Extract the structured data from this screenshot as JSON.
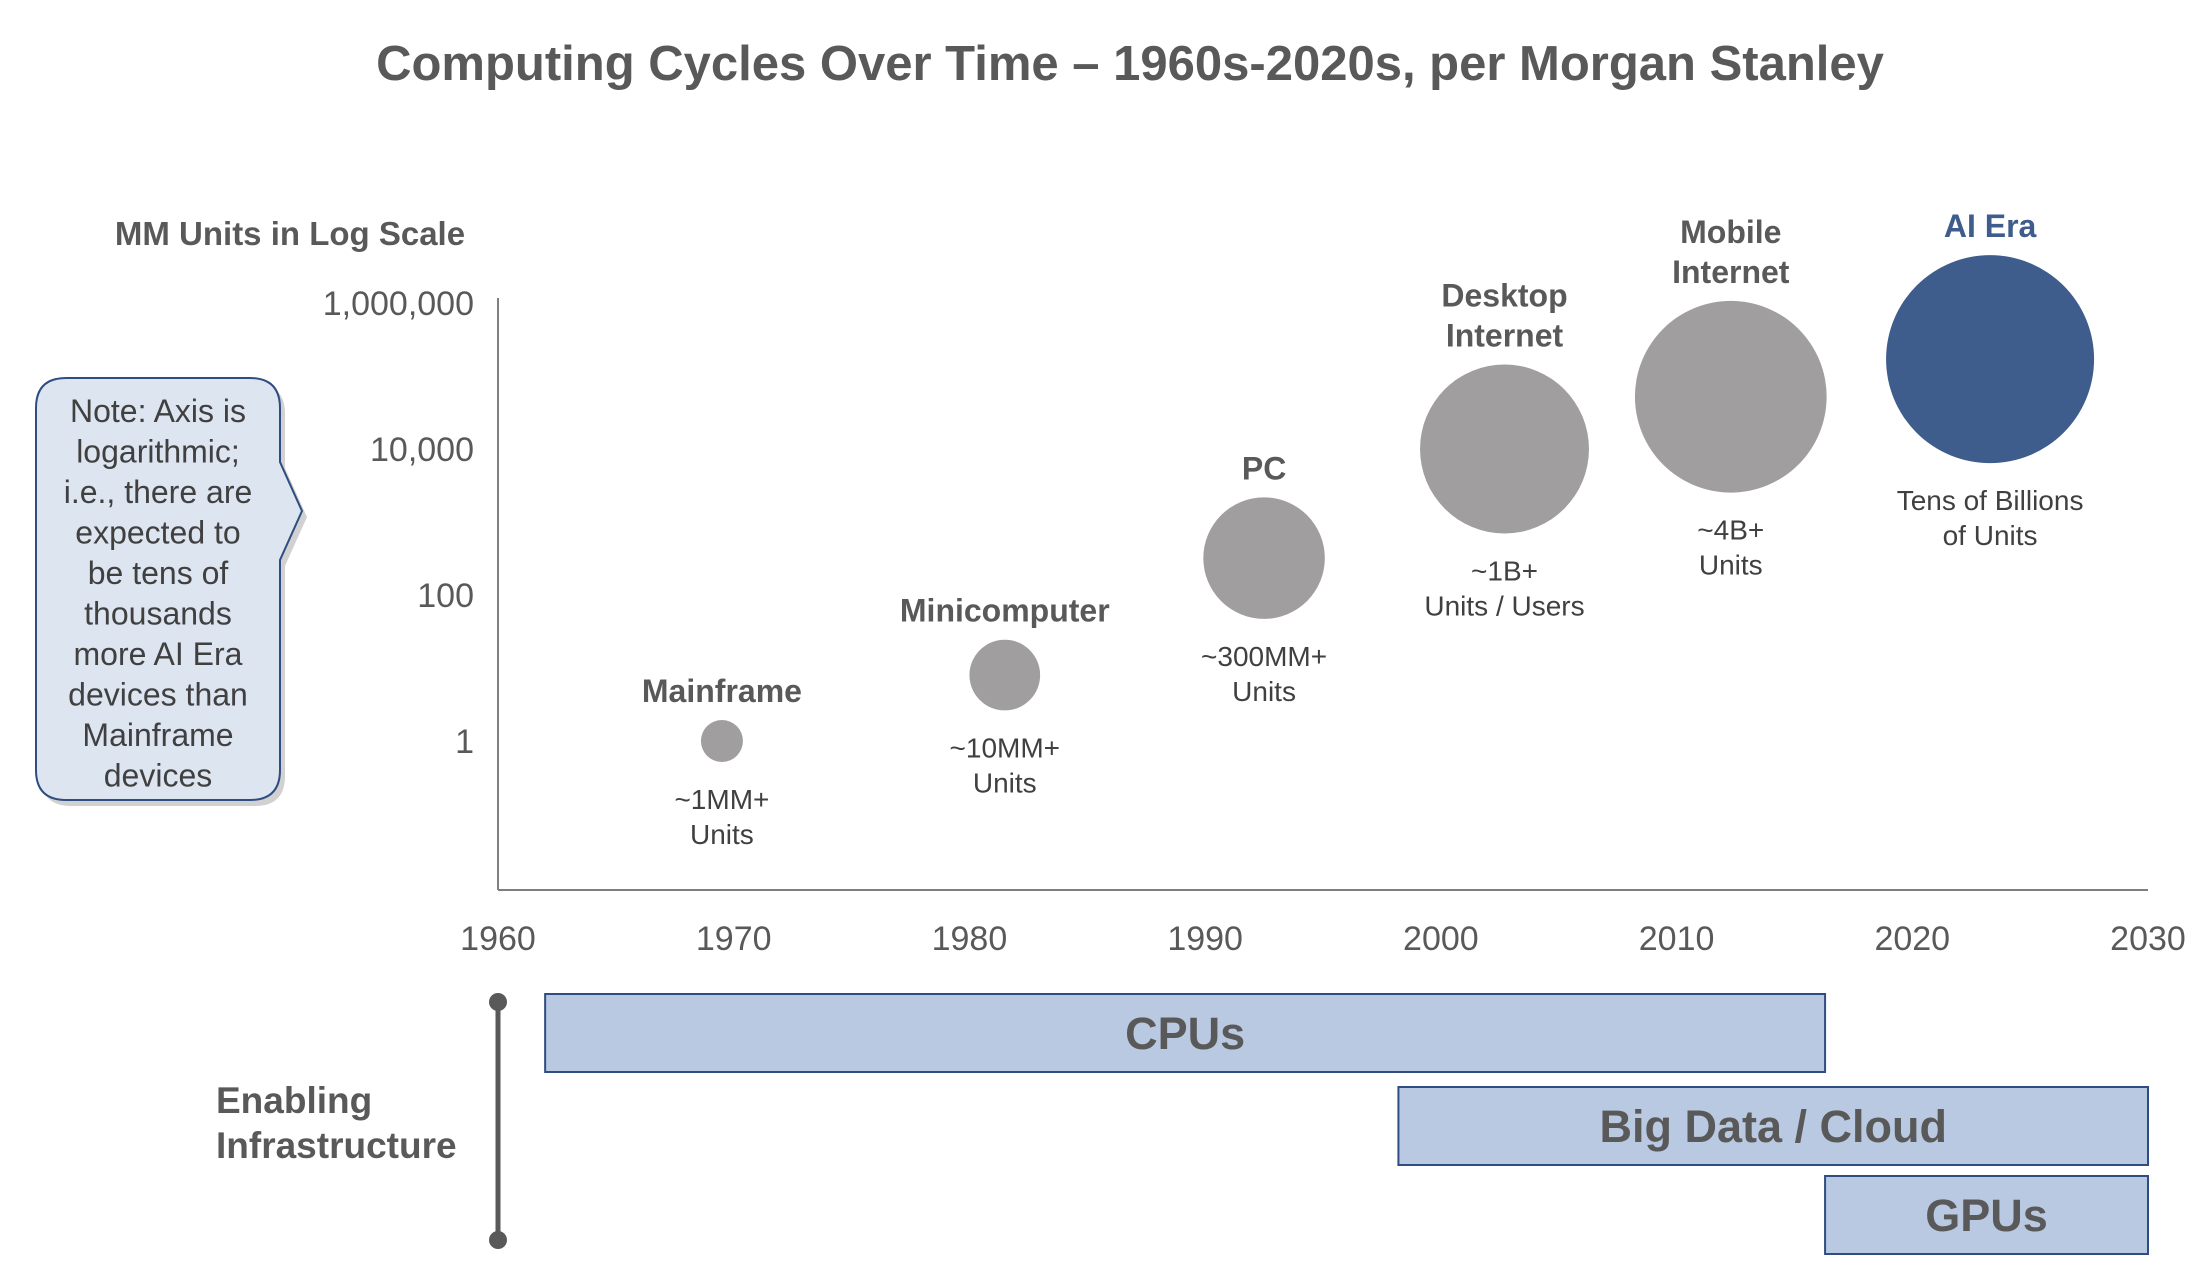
{
  "chart_data": {
    "type": "scatter",
    "title": "Computing Cycles Over Time – 1960s-2020s, per Morgan Stanley",
    "ylabel": "MM Units in Log Scale",
    "y_scale": "log",
    "y_ticks": [
      {
        "value": 1000000,
        "label": "1,000,000"
      },
      {
        "value": 10000,
        "label": "10,000"
      },
      {
        "value": 100,
        "label": "100"
      },
      {
        "value": 1,
        "label": "1"
      }
    ],
    "ylim": [
      0.01,
      1000000
    ],
    "xlim": [
      1960,
      2030
    ],
    "x_ticks": [
      1960,
      1970,
      1980,
      1990,
      2000,
      2010,
      2020,
      2030
    ],
    "grid": false,
    "eras": [
      {
        "name": [
          "Mainframe"
        ],
        "x": 1969.5,
        "y": 1,
        "units": [
          "~1MM+",
          "Units"
        ],
        "highlight": false
      },
      {
        "name": [
          "Minicomputer"
        ],
        "x": 1981.5,
        "y": 8,
        "units": [
          "~10MM+",
          "Units"
        ],
        "highlight": false
      },
      {
        "name": [
          "PC"
        ],
        "x": 1992.5,
        "y": 320,
        "units": [
          "~300MM+",
          "Units"
        ],
        "highlight": false
      },
      {
        "name": [
          "Desktop",
          "Internet"
        ],
        "x": 2002.7,
        "y": 10000,
        "units": [
          "~1B+",
          "Units / Users"
        ],
        "highlight": false
      },
      {
        "name": [
          "Mobile",
          "Internet"
        ],
        "x": 2012.3,
        "y": 52000,
        "units": [
          "~4B+",
          "Units"
        ],
        "highlight": false
      },
      {
        "name": [
          "AI Era"
        ],
        "x": 2023.3,
        "y": 170000,
        "units": [
          "Tens of Billions",
          "of Units"
        ],
        "highlight": true
      }
    ],
    "bubble_colors": {
      "default": "#a09e9e",
      "highlight": "#3e5c8c"
    },
    "infrastructure": {
      "title": [
        "Enabling",
        "Infrastructure"
      ],
      "bars": [
        {
          "label": "CPUs",
          "start": 1962,
          "end": 2016.3
        },
        {
          "label": "Big Data / Cloud",
          "start": 1998.2,
          "end": 2030
        },
        {
          "label": "GPUs",
          "start": 2016.3,
          "end": 2030
        }
      ],
      "bar_fill": "#b9c9e2",
      "bar_stroke": "#2f4d80"
    },
    "note": {
      "lines": [
        "Note: Axis is",
        "logarithmic;",
        "i.e., there are",
        "expected to",
        "be tens of",
        "thousands",
        "more AI Era",
        "devices than",
        "Mainframe",
        "devices"
      ],
      "fill": "#dde5f1",
      "stroke": "#2f4d80"
    }
  }
}
